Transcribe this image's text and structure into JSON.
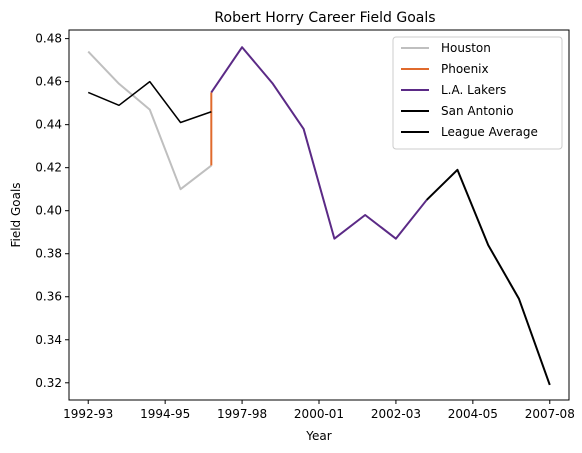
{
  "chart_data": {
    "type": "line",
    "title": "Robert Horry Career Field Goals",
    "xlabel": "Year",
    "ylabel": "Field Goals",
    "x_ticks": [
      "1992-93",
      "1994-95",
      "1997-98",
      "2000-01",
      "2002-03",
      "2004-05",
      "2007-08"
    ],
    "x_tick_positions": [
      0,
      2,
      4,
      6,
      8,
      10,
      12
    ],
    "xlim": [
      -0.5,
      12.5
    ],
    "y_ticks": [
      0.32,
      0.34,
      0.36,
      0.38,
      0.4,
      0.42,
      0.44,
      0.46,
      0.48
    ],
    "y_tick_labels": [
      "0.32",
      "0.34",
      "0.36",
      "0.38",
      "0.40",
      "0.42",
      "0.44",
      "0.46",
      "0.48"
    ],
    "ylim": [
      0.312,
      0.484
    ],
    "grid": false,
    "legend_position": "top-right",
    "series": [
      {
        "name": "Houston",
        "color": "#bfbfbf",
        "width": 2,
        "points": [
          [
            0,
            0.474
          ],
          [
            0.8,
            0.459
          ],
          [
            1.6,
            0.447
          ],
          [
            2.4,
            0.41
          ],
          [
            3.2,
            0.421
          ]
        ]
      },
      {
        "name": "Phoenix",
        "color": "#e06a2c",
        "width": 2,
        "points": [
          [
            3.2,
            0.421
          ],
          [
            3.2,
            0.455
          ]
        ]
      },
      {
        "name": "L.A. Lakers",
        "color": "#5b2a86",
        "width": 2,
        "points": [
          [
            3.2,
            0.455
          ],
          [
            4,
            0.476
          ],
          [
            4.8,
            0.459
          ],
          [
            5.6,
            0.438
          ],
          [
            6.4,
            0.387
          ],
          [
            7.2,
            0.398
          ],
          [
            8,
            0.387
          ],
          [
            8.8,
            0.405
          ]
        ]
      },
      {
        "name": "San Antonio",
        "color": "#000000",
        "width": 2,
        "points": [
          [
            8.8,
            0.405
          ],
          [
            9.6,
            0.419
          ],
          [
            10.4,
            0.384
          ],
          [
            11.2,
            0.359
          ],
          [
            12,
            0.319
          ]
        ]
      },
      {
        "name": "League Average",
        "color": "#000000",
        "width": 1.5,
        "points": [
          [
            0,
            0.455
          ],
          [
            0.8,
            0.449
          ],
          [
            1.6,
            0.46
          ],
          [
            2.4,
            0.441
          ],
          [
            3.2,
            0.446
          ]
        ]
      }
    ]
  }
}
